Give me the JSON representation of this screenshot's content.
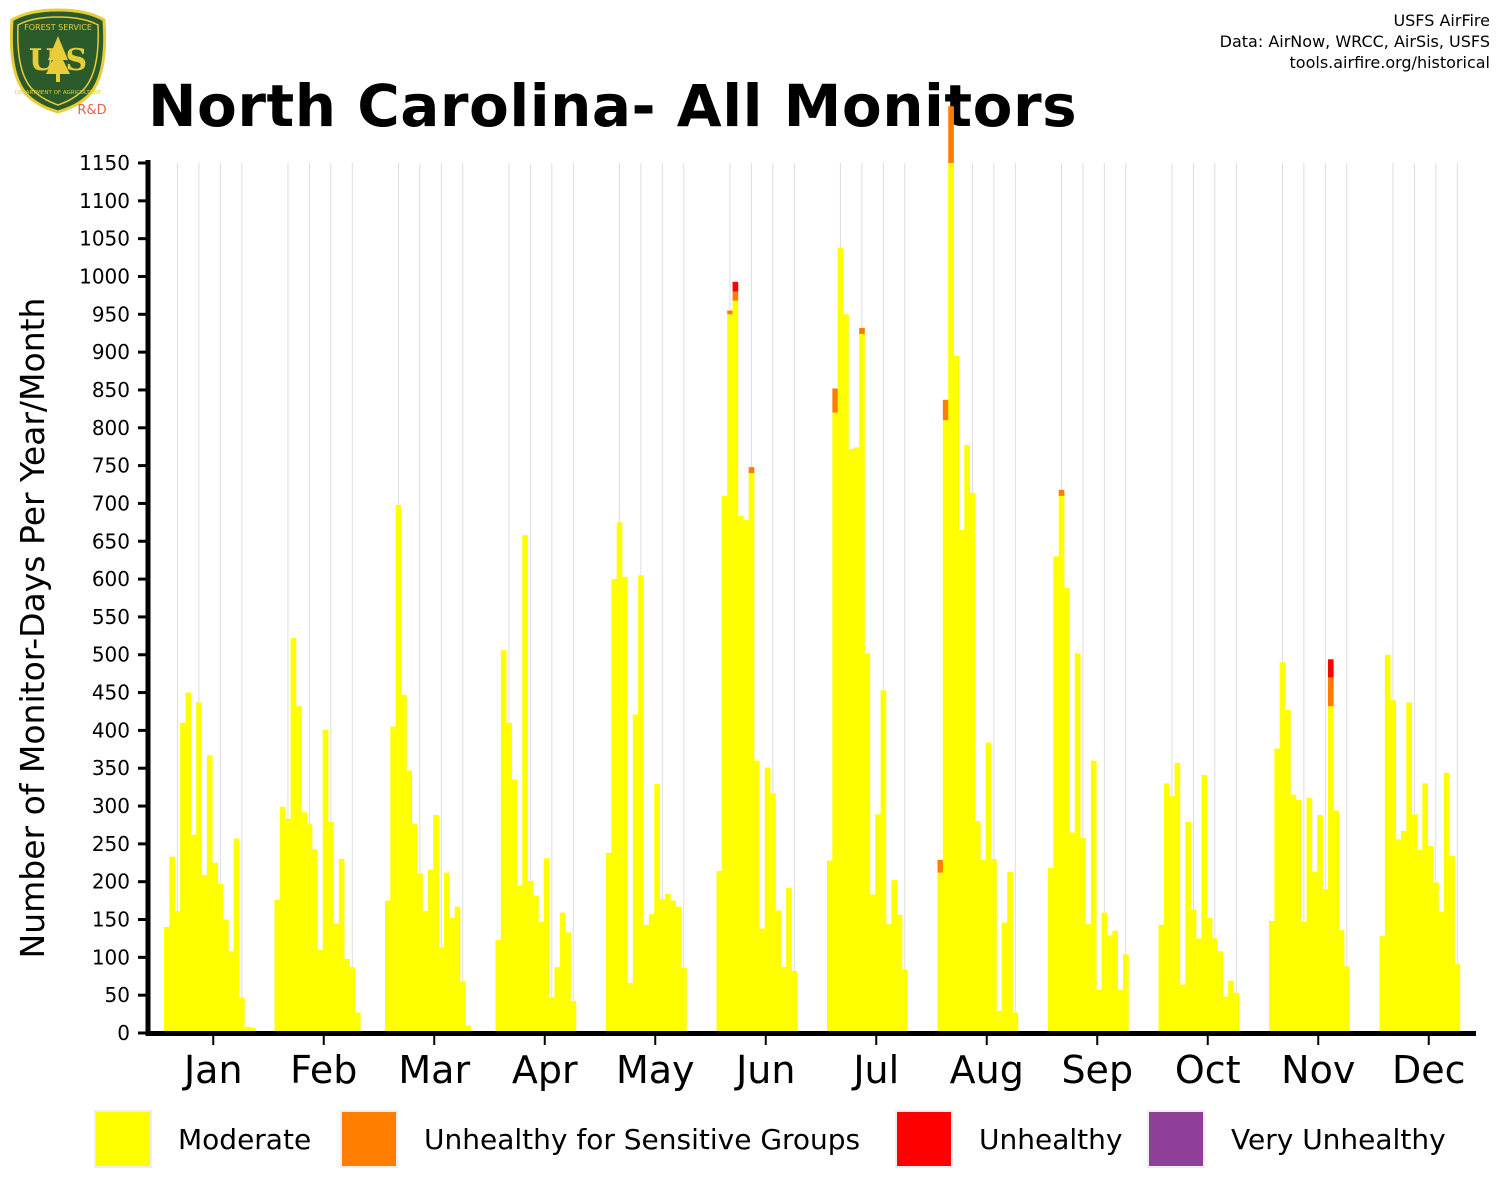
{
  "header": {
    "title": "North Carolina- All Monitors",
    "credits": [
      "USFS AirFire",
      "Data: AirNow, WRCC, AirSis, USFS",
      "tools.airfire.org/historical"
    ],
    "logo": {
      "top_text": "FOREST SERVICE",
      "letters": "U S",
      "bottom_text": "DEPARTMENT OF AGRICULTURE",
      "tag": "R&D",
      "colors": {
        "shield": "#2b5a2b",
        "border": "#e8cc3a",
        "tag": "#e8624a"
      }
    }
  },
  "chart_data": {
    "type": "bar",
    "stacked": true,
    "title": "North Carolina- All Monitors",
    "ylabel": "Number of Monitor-Days Per Year/Month",
    "xlabel": "",
    "ylim": [
      0,
      1150
    ],
    "yticks": [
      "0",
      "50",
      "100",
      "150",
      "200",
      "250",
      "300",
      "350",
      "400",
      "450",
      "500",
      "550",
      "600",
      "650",
      "700",
      "750",
      "800",
      "850",
      "900",
      "950",
      "1000",
      "1050",
      "1100",
      "1150"
    ],
    "grid": "vertical lines between years",
    "categories": [
      "Jan",
      "Feb",
      "Mar",
      "Apr",
      "May",
      "Jun",
      "Jul",
      "Aug",
      "Sep",
      "Oct",
      "Nov",
      "Dec"
    ],
    "bars_per_month": 18,
    "series": [
      {
        "name": "Moderate",
        "color": "#ffff00",
        "values": [
          [
            140,
            233,
            161,
            410,
            450,
            262,
            437,
            209,
            367,
            225,
            197,
            150,
            108,
            257,
            47,
            8,
            7,
            0
          ],
          [
            176,
            299,
            283,
            522,
            432,
            292,
            276,
            243,
            110,
            401,
            279,
            145,
            230,
            98,
            87,
            27,
            0,
            0
          ],
          [
            175,
            405,
            698,
            447,
            347,
            276,
            211,
            161,
            216,
            288,
            113,
            212,
            152,
            167,
            68,
            10,
            0,
            0
          ],
          [
            123,
            506,
            410,
            335,
            195,
            658,
            201,
            181,
            147,
            231,
            47,
            87,
            159,
            133,
            42,
            0,
            0,
            0
          ],
          [
            238,
            600,
            675,
            603,
            66,
            421,
            605,
            143,
            157,
            329,
            177,
            184,
            175,
            167,
            86,
            0,
            0,
            0
          ],
          [
            214,
            710,
            950,
            968,
            684,
            678,
            740,
            360,
            138,
            351,
            317,
            162,
            87,
            192,
            82,
            0,
            0,
            0
          ],
          [
            228,
            820,
            1038,
            950,
            772,
            774,
            924,
            502,
            183,
            289,
            453,
            144,
            202,
            156,
            84,
            0,
            0,
            0
          ],
          [
            212,
            810,
            1150,
            895,
            665,
            777,
            714,
            280,
            229,
            384,
            230,
            29,
            146,
            213,
            27,
            0,
            0,
            0
          ],
          [
            218,
            630,
            710,
            588,
            265,
            502,
            258,
            144,
            360,
            57,
            159,
            129,
            135,
            57,
            104,
            0,
            0,
            0
          ],
          [
            143,
            330,
            313,
            357,
            64,
            279,
            163,
            125,
            341,
            152,
            125,
            108,
            48,
            69,
            53,
            0,
            0,
            0
          ],
          [
            148,
            376,
            490,
            427,
            315,
            308,
            147,
            311,
            213,
            288,
            190,
            432,
            294,
            136,
            88,
            0,
            0,
            0
          ],
          [
            128,
            500,
            440,
            256,
            267,
            437,
            289,
            242,
            330,
            247,
            199,
            160,
            344,
            234,
            91,
            0,
            0,
            0
          ]
        ]
      },
      {
        "name": "Unhealthy for Sensitive Groups",
        "color": "#ff7e00",
        "values": [
          [
            0,
            0,
            0,
            0,
            0,
            0,
            0,
            0,
            0,
            0,
            0,
            0,
            0,
            0,
            0,
            0,
            0,
            0
          ],
          [
            0,
            0,
            0,
            0,
            0,
            0,
            0,
            0,
            0,
            0,
            0,
            0,
            0,
            0,
            0,
            0,
            0,
            0
          ],
          [
            0,
            0,
            0,
            0,
            0,
            0,
            0,
            0,
            0,
            0,
            0,
            0,
            0,
            0,
            0,
            0,
            0,
            0
          ],
          [
            0,
            0,
            0,
            0,
            0,
            0,
            0,
            0,
            0,
            0,
            0,
            0,
            0,
            0,
            0,
            0,
            0,
            0
          ],
          [
            0,
            0,
            0,
            0,
            0,
            0,
            0,
            0,
            0,
            0,
            0,
            0,
            0,
            0,
            0,
            0,
            0,
            0
          ],
          [
            0,
            0,
            5,
            12,
            0,
            0,
            8,
            0,
            0,
            0,
            0,
            0,
            0,
            0,
            0,
            0,
            0,
            0
          ],
          [
            0,
            32,
            0,
            0,
            0,
            0,
            8,
            0,
            0,
            0,
            0,
            0,
            0,
            0,
            0,
            0,
            0,
            0
          ],
          [
            17,
            27,
            75,
            0,
            0,
            0,
            0,
            0,
            0,
            0,
            0,
            0,
            0,
            0,
            0,
            0,
            0,
            0
          ],
          [
            0,
            0,
            8,
            0,
            0,
            0,
            0,
            0,
            0,
            0,
            0,
            0,
            0,
            0,
            0,
            0,
            0,
            0
          ],
          [
            0,
            0,
            0,
            0,
            0,
            0,
            0,
            0,
            0,
            0,
            0,
            0,
            0,
            0,
            0,
            0,
            0,
            0
          ],
          [
            0,
            0,
            0,
            0,
            0,
            0,
            0,
            0,
            0,
            0,
            0,
            38,
            0,
            0,
            0,
            0,
            0,
            0
          ],
          [
            0,
            0,
            0,
            0,
            0,
            0,
            0,
            0,
            0,
            0,
            0,
            0,
            0,
            0,
            0,
            0,
            0,
            0
          ]
        ]
      },
      {
        "name": "Unhealthy",
        "color": "#ff0000",
        "values": [
          [
            0,
            0,
            0,
            0,
            0,
            0,
            0,
            0,
            0,
            0,
            0,
            0,
            0,
            0,
            0,
            0,
            0,
            0
          ],
          [
            0,
            0,
            0,
            0,
            0,
            0,
            0,
            0,
            0,
            0,
            0,
            0,
            0,
            0,
            0,
            0,
            0,
            0
          ],
          [
            0,
            0,
            0,
            0,
            0,
            0,
            0,
            0,
            0,
            0,
            0,
            0,
            0,
            0,
            0,
            0,
            0,
            0
          ],
          [
            0,
            0,
            0,
            0,
            0,
            0,
            0,
            0,
            0,
            0,
            0,
            0,
            0,
            0,
            0,
            0,
            0,
            0
          ],
          [
            0,
            0,
            0,
            0,
            0,
            0,
            0,
            0,
            0,
            0,
            0,
            0,
            0,
            0,
            0,
            0,
            0,
            0
          ],
          [
            0,
            0,
            0,
            13,
            0,
            0,
            0,
            0,
            0,
            0,
            0,
            0,
            0,
            0,
            0,
            0,
            0,
            0
          ],
          [
            0,
            0,
            0,
            0,
            0,
            0,
            0,
            0,
            0,
            0,
            0,
            0,
            0,
            0,
            0,
            0,
            0,
            0
          ],
          [
            0,
            0,
            0,
            0,
            0,
            0,
            0,
            0,
            0,
            0,
            0,
            0,
            0,
            0,
            0,
            0,
            0,
            0
          ],
          [
            0,
            0,
            0,
            0,
            0,
            0,
            0,
            0,
            0,
            0,
            0,
            0,
            0,
            0,
            0,
            0,
            0,
            0
          ],
          [
            0,
            0,
            0,
            0,
            0,
            0,
            0,
            0,
            0,
            0,
            0,
            0,
            0,
            0,
            0,
            0,
            0,
            0
          ],
          [
            0,
            0,
            0,
            0,
            0,
            0,
            0,
            0,
            0,
            0,
            0,
            24,
            0,
            0,
            0,
            0,
            0,
            0
          ],
          [
            0,
            0,
            0,
            0,
            0,
            0,
            0,
            0,
            0,
            0,
            0,
            0,
            0,
            0,
            0,
            0,
            0,
            0
          ]
        ]
      },
      {
        "name": "Very Unhealthy",
        "color": "#8f3f97",
        "values": [
          [
            0,
            0,
            0,
            0,
            0,
            0,
            0,
            0,
            0,
            0,
            0,
            0,
            0,
            0,
            0,
            0,
            0,
            0
          ],
          [
            0,
            0,
            0,
            0,
            0,
            0,
            0,
            0,
            0,
            0,
            0,
            0,
            0,
            0,
            0,
            0,
            0,
            0
          ],
          [
            0,
            0,
            0,
            0,
            0,
            0,
            0,
            0,
            0,
            0,
            0,
            0,
            0,
            0,
            0,
            0,
            0,
            0
          ],
          [
            0,
            0,
            0,
            0,
            0,
            0,
            0,
            0,
            0,
            0,
            0,
            0,
            0,
            0,
            0,
            0,
            0,
            0
          ],
          [
            0,
            0,
            0,
            0,
            0,
            0,
            0,
            0,
            0,
            0,
            0,
            0,
            0,
            0,
            0,
            0,
            0,
            0
          ],
          [
            0,
            0,
            0,
            0,
            0,
            0,
            0,
            0,
            0,
            0,
            0,
            0,
            0,
            0,
            0,
            0,
            0,
            0
          ],
          [
            0,
            0,
            0,
            0,
            0,
            0,
            0,
            0,
            0,
            0,
            0,
            0,
            0,
            0,
            0,
            0,
            0,
            0
          ],
          [
            0,
            0,
            0,
            0,
            0,
            0,
            0,
            0,
            0,
            0,
            0,
            0,
            0,
            0,
            0,
            0,
            0,
            0
          ],
          [
            0,
            0,
            0,
            0,
            0,
            0,
            0,
            0,
            0,
            0,
            0,
            0,
            0,
            0,
            0,
            0,
            0,
            0
          ],
          [
            0,
            0,
            0,
            0,
            0,
            0,
            0,
            0,
            0,
            0,
            0,
            0,
            0,
            0,
            0,
            0,
            0,
            0
          ],
          [
            0,
            0,
            0,
            0,
            0,
            0,
            0,
            0,
            0,
            0,
            0,
            0,
            0,
            0,
            0,
            0,
            0,
            0
          ],
          [
            0,
            0,
            0,
            0,
            0,
            0,
            0,
            0,
            0,
            0,
            0,
            0,
            0,
            0,
            0,
            0,
            0,
            0
          ]
        ]
      }
    ]
  },
  "legend": {
    "items": [
      {
        "label": "Moderate",
        "color": "#ffff00"
      },
      {
        "label": "Unhealthy for Sensitive Groups",
        "color": "#ff7e00"
      },
      {
        "label": "Unhealthy",
        "color": "#ff0000"
      },
      {
        "label": "Very Unhealthy",
        "color": "#8f3f97"
      }
    ]
  }
}
